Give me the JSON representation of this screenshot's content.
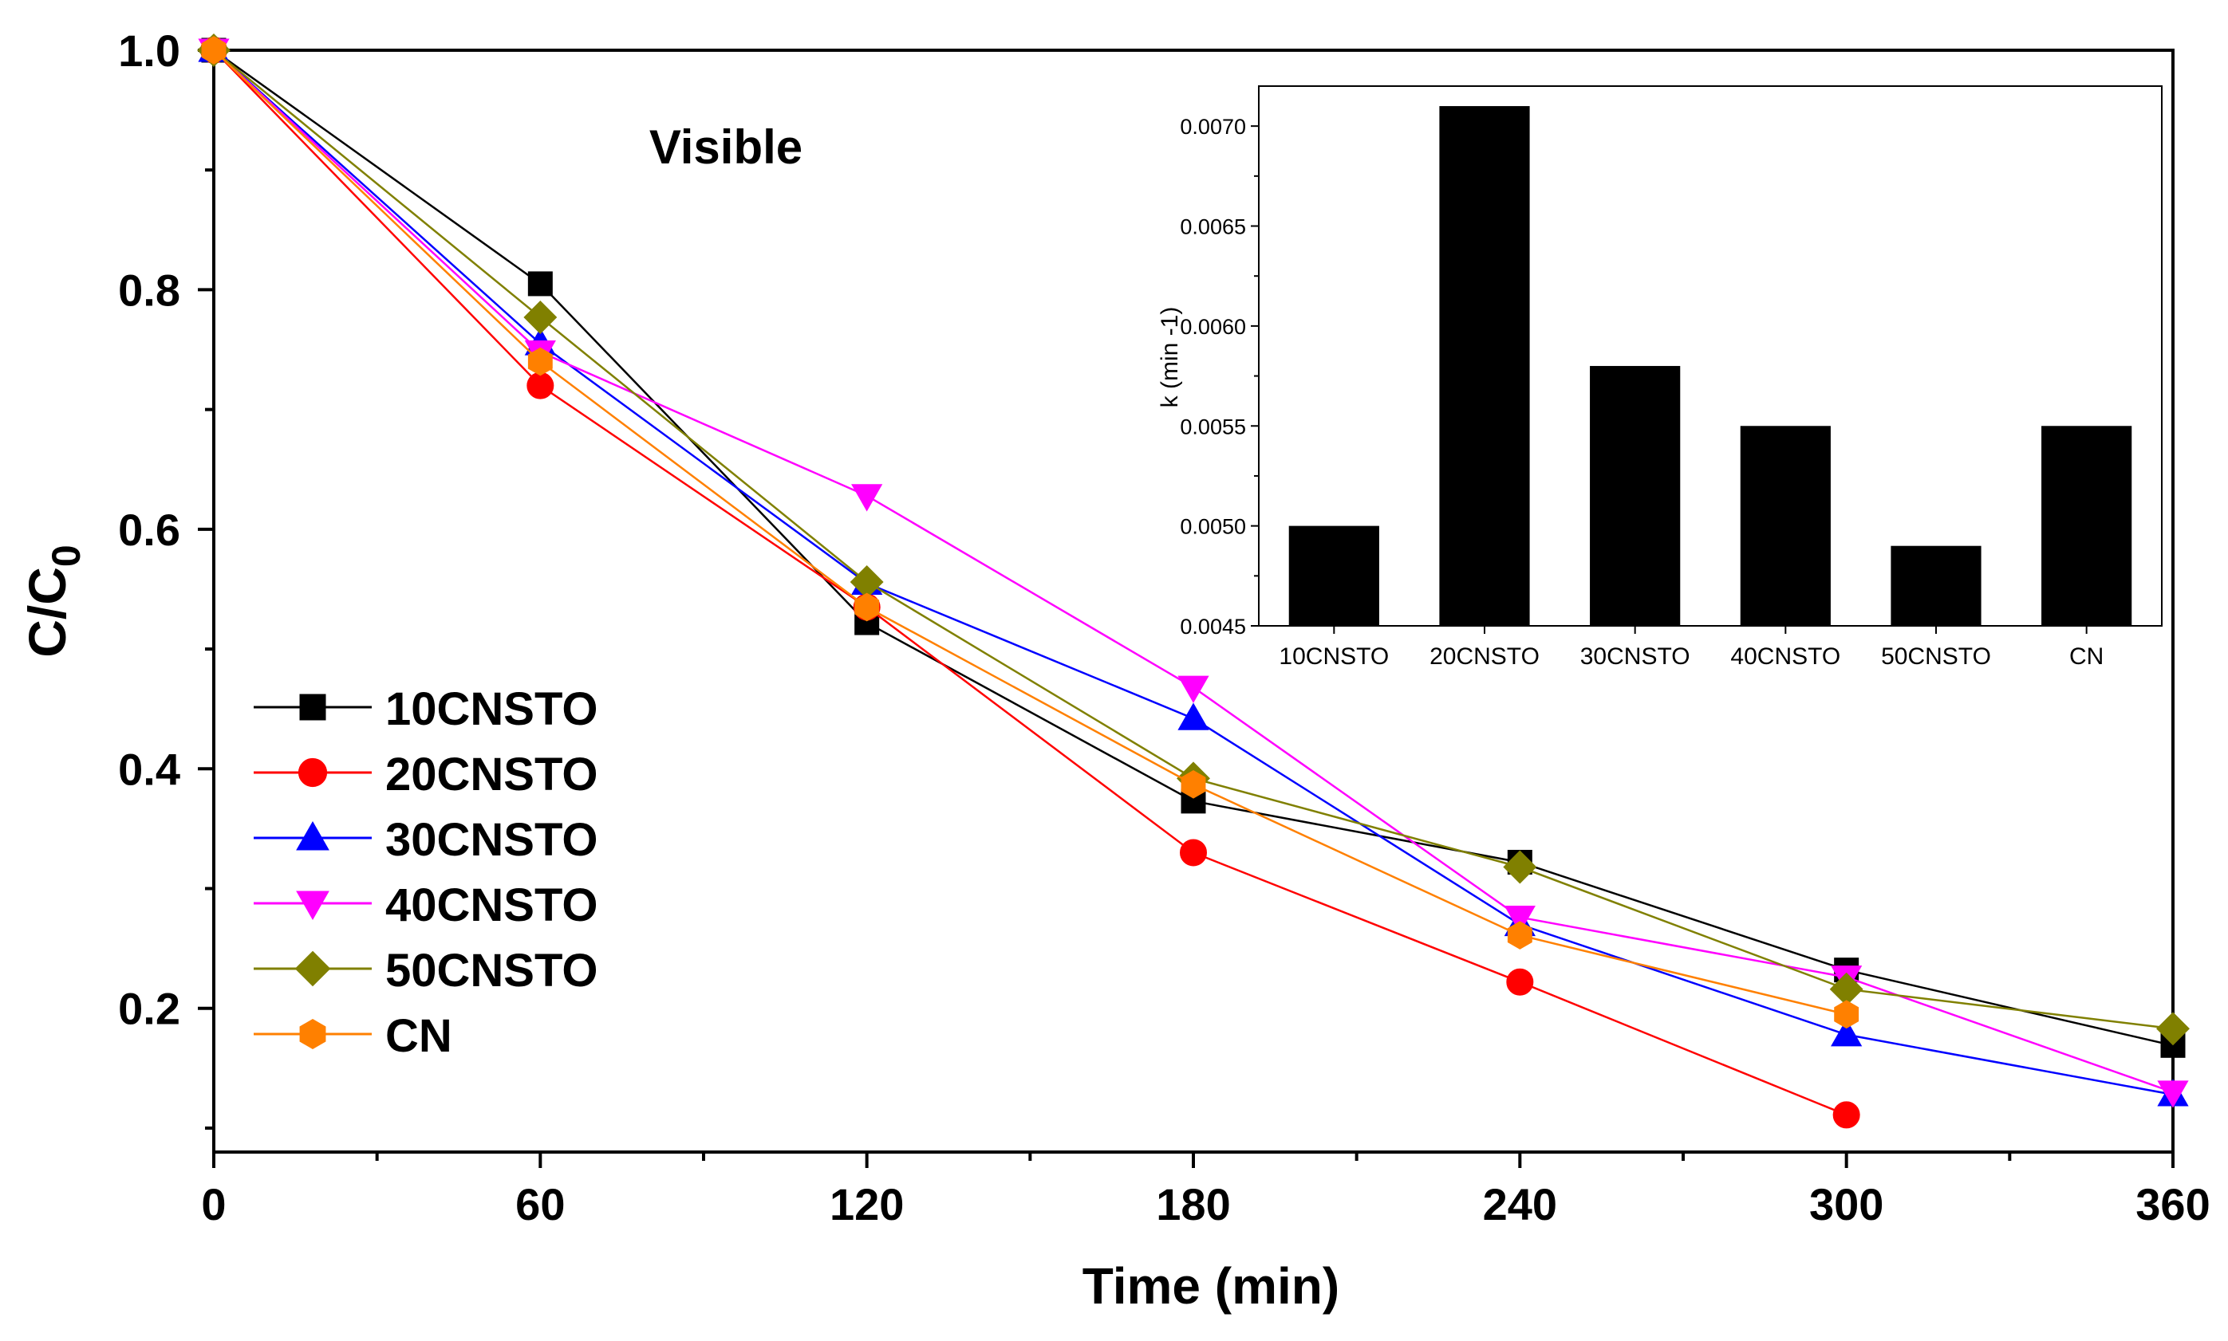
{
  "chart_data": [
    {
      "type": "line",
      "title": "Visible",
      "xlabel": "Time (min)",
      "ylabel": "C/C",
      "ylabel_subscript": "0",
      "xlim": [
        0,
        360
      ],
      "ylim": [
        0.08,
        1.0
      ],
      "x_ticks": [
        "0",
        "60",
        "120",
        "180",
        "240",
        "300",
        "360"
      ],
      "y_ticks": [
        "0.2",
        "0.4",
        "0.6",
        "0.8",
        "1.0"
      ],
      "legend_position": "left",
      "series": [
        {
          "name": "10CNSTO",
          "color": "#000000",
          "marker": "square",
          "x": [
            0,
            60,
            120,
            180,
            240,
            300,
            360
          ],
          "y": [
            1.0,
            0.805,
            0.522,
            0.373,
            0.322,
            0.232,
            0.169
          ]
        },
        {
          "name": "20CNSTO",
          "color": "#ff0000",
          "marker": "circle",
          "x": [
            0,
            60,
            120,
            180,
            240,
            300
          ],
          "y": [
            1.0,
            0.72,
            0.535,
            0.33,
            0.222,
            0.111
          ]
        },
        {
          "name": "30CNSTO",
          "color": "#0000ff",
          "marker": "triangle-up",
          "x": [
            0,
            60,
            120,
            180,
            240,
            300,
            360
          ],
          "y": [
            1.0,
            0.755,
            0.555,
            0.442,
            0.27,
            0.178,
            0.128
          ]
        },
        {
          "name": "40CNSTO",
          "color": "#ff00ff",
          "marker": "triangle-down",
          "x": [
            0,
            60,
            120,
            180,
            240,
            300,
            360
          ],
          "y": [
            1.0,
            0.748,
            0.628,
            0.468,
            0.276,
            0.226,
            0.13
          ]
        },
        {
          "name": "50CNSTO",
          "color": "#808000",
          "marker": "diamond",
          "x": [
            0,
            60,
            120,
            180,
            240,
            300,
            360
          ],
          "y": [
            1.0,
            0.777,
            0.556,
            0.392,
            0.318,
            0.216,
            0.183
          ]
        },
        {
          "name": "CN",
          "color": "#ff8000",
          "marker": "hexagon",
          "x": [
            0,
            60,
            120,
            180,
            240,
            300
          ],
          "y": [
            1.0,
            0.74,
            0.535,
            0.387,
            0.261,
            0.195
          ]
        }
      ]
    },
    {
      "type": "bar",
      "title": "",
      "xlabel": "",
      "ylabel": "k (min -1)",
      "ylim": [
        0.0045,
        0.0072
      ],
      "y_ticks": [
        "0.0045",
        "0.0050",
        "0.0055",
        "0.0060",
        "0.0065",
        "0.0070"
      ],
      "categories": [
        "10CNSTO",
        "20CNSTO",
        "30CNSTO",
        "40CNSTO",
        "50CNSTO",
        "CN"
      ],
      "values": [
        0.005,
        0.0071,
        0.0058,
        0.0055,
        0.0049,
        0.0055
      ],
      "bar_color": "#000000"
    }
  ]
}
